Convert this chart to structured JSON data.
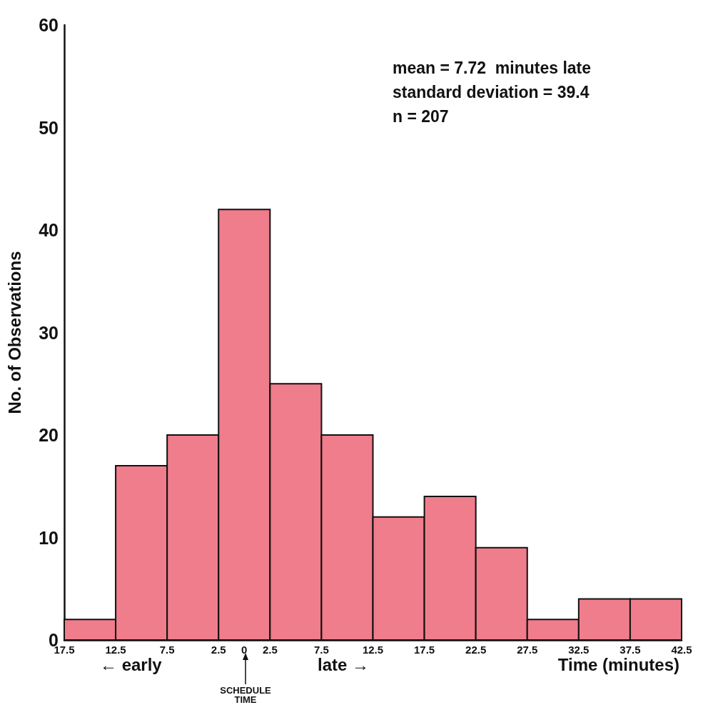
{
  "chart_data": {
    "type": "histogram",
    "ylabel": "No. of Observations",
    "xlabel": "Time (minutes)",
    "bins": [
      -17.5,
      -12.5,
      -7.5,
      -2.5,
      2.5,
      7.5,
      12.5,
      17.5,
      22.5,
      27.5,
      32.5,
      37.5,
      42.5
    ],
    "values": [
      2,
      17,
      20,
      42,
      25,
      20,
      12,
      14,
      9,
      2,
      4,
      4
    ],
    "color": "#f07d8c",
    "xlim": [
      -17.5,
      42.5
    ],
    "xticks": [
      {
        "value": -17.5,
        "label": "17.5"
      },
      {
        "value": -12.5,
        "label": "12.5"
      },
      {
        "value": -7.5,
        "label": "7.5"
      },
      {
        "value": -2.5,
        "label": "2.5"
      },
      0,
      2.5,
      7.5,
      12.5,
      17.5,
      22.5,
      27.5,
      32.5,
      37.5,
      42.5
    ],
    "ylim": [
      0,
      60
    ],
    "yticks": [
      0,
      10,
      20,
      30,
      40,
      50,
      60
    ],
    "grid": false,
    "annotations": [
      "mean = 7.72  minutes late",
      "standard deviation = 39.4",
      "n = 207",
      "← early",
      "late →",
      "SCHEDULE TIME"
    ]
  }
}
